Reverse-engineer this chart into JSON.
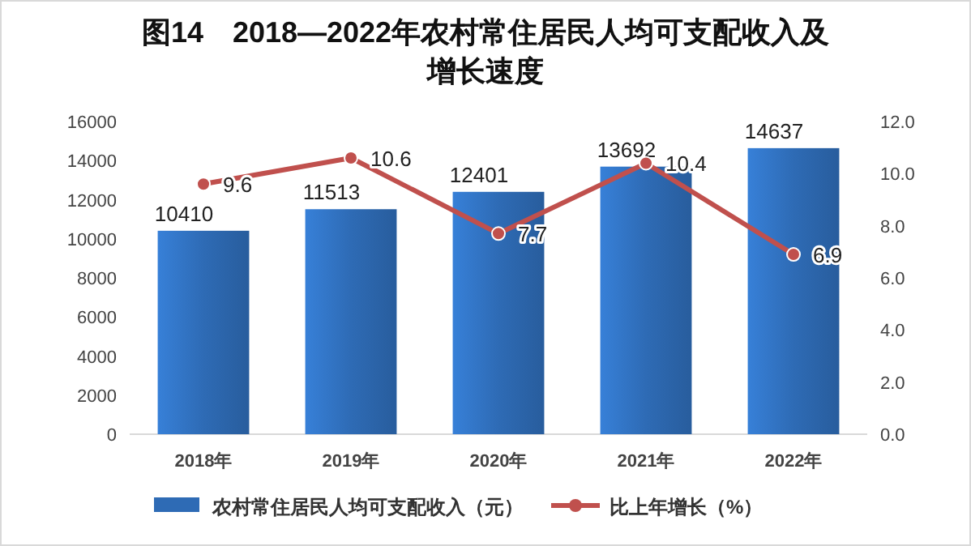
{
  "chart_data": {
    "type": "bar",
    "title": "图14　2018—2022年农村常住居民人均可支配收入及增长速度",
    "categories": [
      "2018年",
      "2019年",
      "2020年",
      "2021年",
      "2022年"
    ],
    "series": [
      {
        "name": "农村常住居民人均可支配收入（元）",
        "color": "#2e6bb5",
        "values": [
          10410,
          11513,
          12401,
          13692,
          14637
        ]
      },
      {
        "name": "比上年增长（%）",
        "type": "line",
        "axis": "y2",
        "color": "#c0504d",
        "marker": "circle",
        "values": [
          9.6,
          10.6,
          7.7,
          10.4,
          6.9
        ]
      }
    ],
    "ylim": [
      0,
      16000
    ],
    "yticks": [
      0,
      2000,
      4000,
      6000,
      8000,
      10000,
      12000,
      14000,
      16000
    ],
    "y2lim": [
      0,
      12
    ],
    "y2ticks": [
      {
        "value": 0,
        "label": "0.0"
      },
      {
        "value": 2,
        "label": "2.0"
      },
      {
        "value": 4,
        "label": "4.0"
      },
      {
        "value": 6,
        "label": "6.0"
      },
      {
        "value": 8,
        "label": "8.0"
      },
      {
        "value": 10,
        "label": "10.0"
      },
      {
        "value": 12,
        "label": "12.0"
      }
    ],
    "data_labels": true,
    "legend": "bottom",
    "grid": false
  }
}
